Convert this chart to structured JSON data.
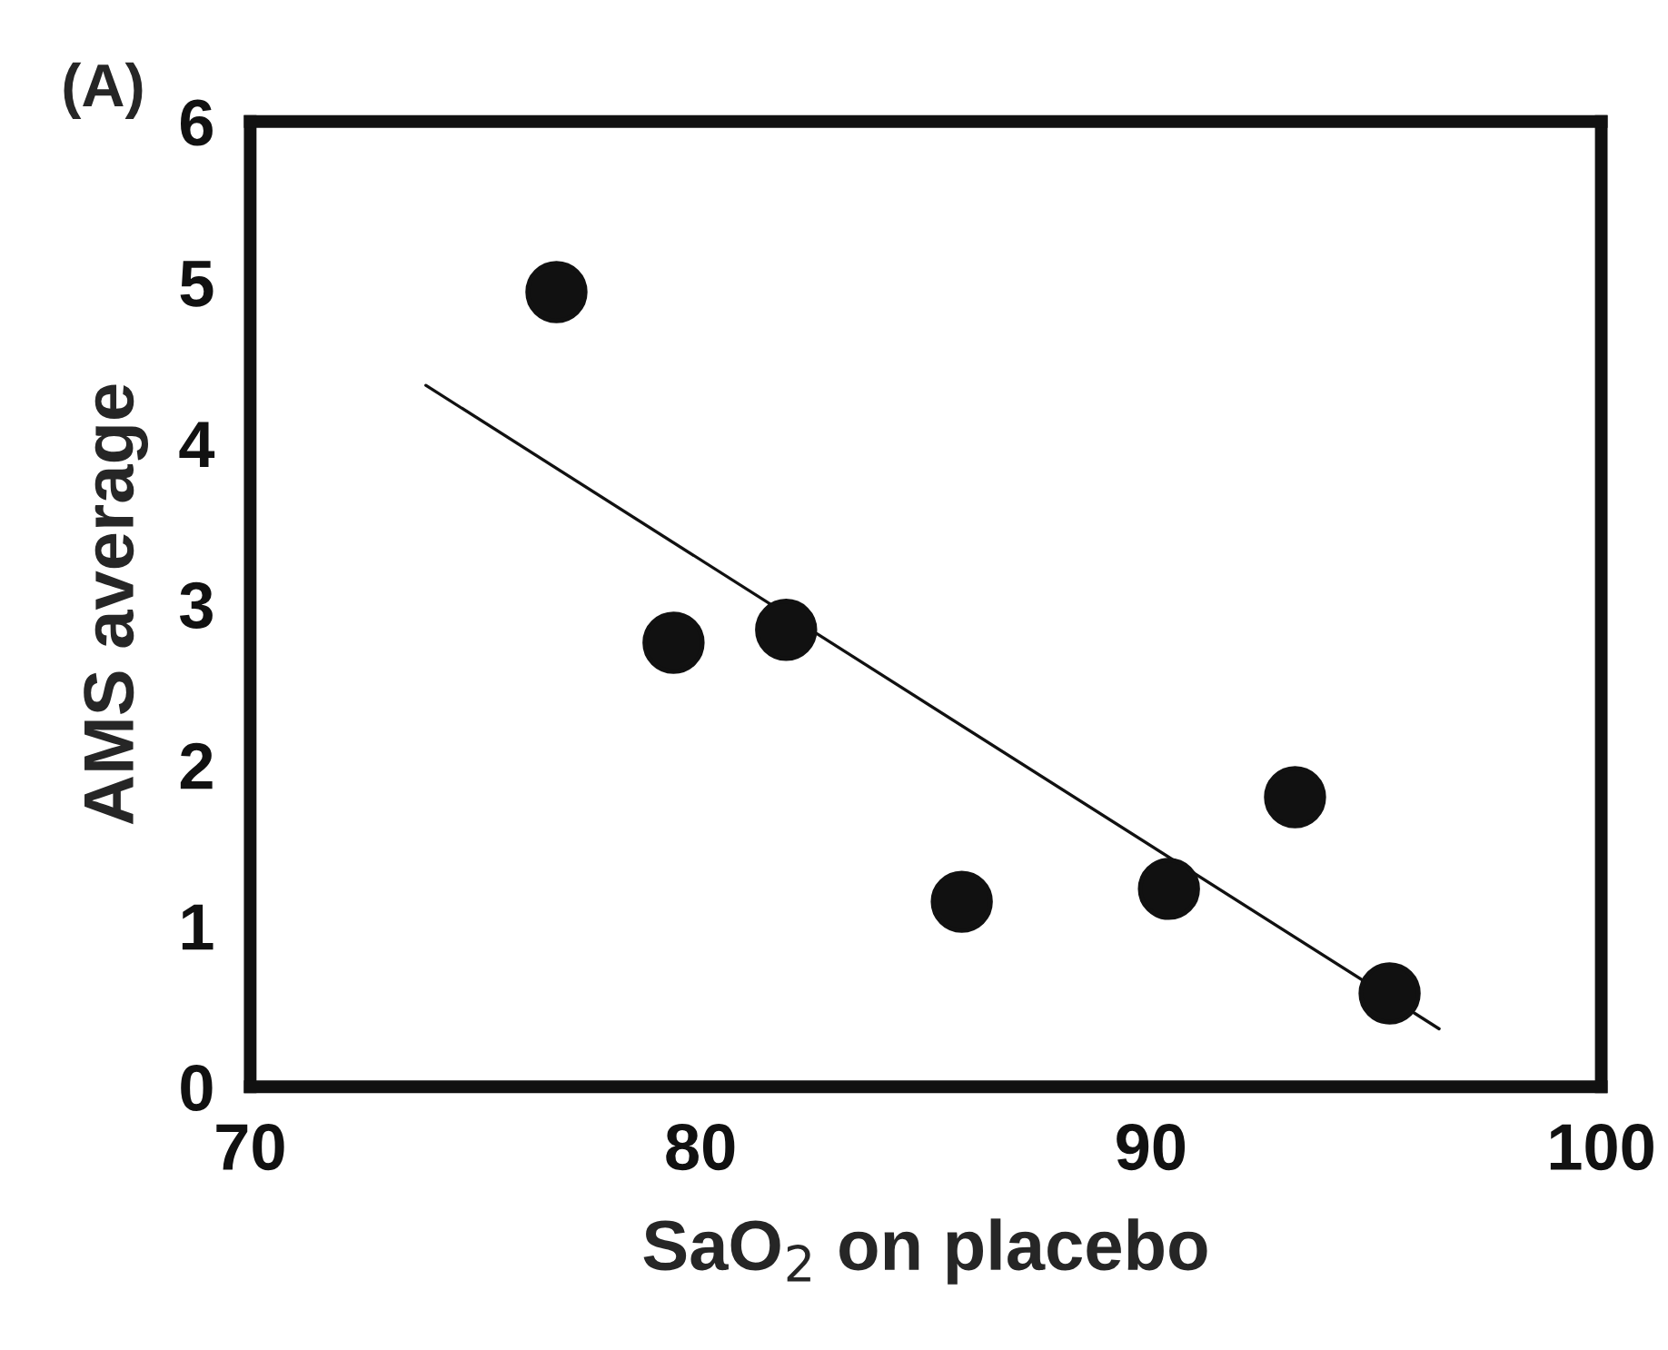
{
  "chart_data": {
    "type": "scatter",
    "title": "(A)",
    "xlabel": "SaO$_{2}$ on placebo",
    "ylabel": "AMS average",
    "xlim": [
      70,
      100
    ],
    "xticks": [
      70,
      80,
      90,
      100
    ],
    "ylim": [
      0,
      6
    ],
    "yticks": [
      0,
      1,
      2,
      3,
      4,
      5,
      6
    ],
    "grid": false,
    "legend": false,
    "series": [
      {
        "marker": "circle",
        "color": "#111111",
        "x": [
          76.8,
          79.4,
          81.9,
          85.8,
          90.4,
          93.2,
          95.3
        ],
        "values": [
          4.94,
          2.76,
          2.84,
          1.15,
          1.23,
          1.8,
          0.58
        ]
      },
      {
        "type": "line",
        "color": "#111111",
        "line_style": "solid",
        "x": [
          73.9,
          96.4
        ],
        "values": [
          4.36,
          0.36
        ]
      }
    ]
  }
}
